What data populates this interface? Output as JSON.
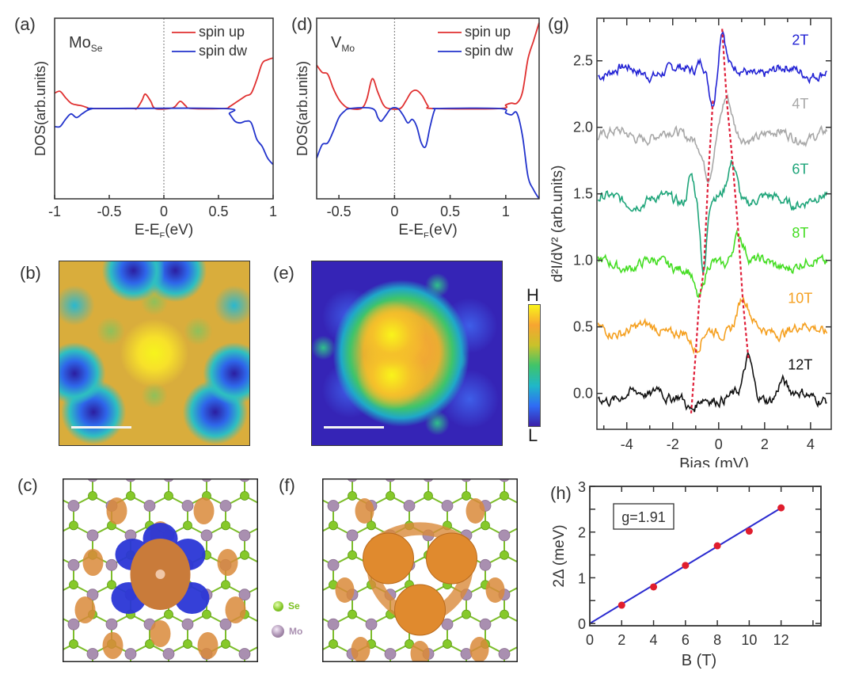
{
  "panels": {
    "a": {
      "label": "(a)"
    },
    "b": {
      "label": "(b)"
    },
    "c": {
      "label": "(c)"
    },
    "d": {
      "label": "(d)"
    },
    "e": {
      "label": "(e)"
    },
    "f": {
      "label": "(f)"
    },
    "g": {
      "label": "(g)"
    },
    "h": {
      "label": "(h)"
    }
  },
  "colorbar": {
    "high": "H",
    "low": "L",
    "colors": [
      "#3b1fa8",
      "#2f6cf5",
      "#1fb7c8",
      "#3fc46a",
      "#c9c22a",
      "#f7a531",
      "#f9f41a"
    ]
  },
  "atoms_legend": {
    "se": {
      "label": "Se",
      "color": "#86c92a"
    },
    "mo": {
      "label": "Mo",
      "color": "#a98fb0"
    }
  },
  "colors": {
    "spin_up": "#e03030",
    "spin_dw": "#2233cc",
    "isosurface": "#d98a3a",
    "isosurface_neg": "#2a36d6",
    "dashed": "#e0203a",
    "fit_line": "#2b2bd0",
    "points": "#e01d2d"
  },
  "chart_data": [
    {
      "id": "a",
      "type": "line",
      "title": "",
      "annotation": {
        "main": "Mo",
        "sub": "Se"
      },
      "xlabel": "E-E",
      "xlabel_sub": "F",
      "xlabel_tail": "(eV)",
      "ylabel": "DOS(arb.units)",
      "xlim": [
        -1,
        1
      ],
      "ylim": [
        -1,
        1
      ],
      "xticks": [
        -1,
        -0.5,
        0,
        0.5,
        1
      ],
      "xtick_labels": [
        "-1",
        "-0.5",
        "0",
        "0.5",
        "1"
      ],
      "vline": 0,
      "legend": {
        "position": "top-right",
        "entries": [
          "spin up",
          "spin dw"
        ]
      },
      "series": [
        {
          "name": "spin up",
          "color": "#e03030",
          "x": [
            -1,
            -0.95,
            -0.9,
            -0.85,
            -0.8,
            -0.75,
            -0.7,
            -0.65,
            -0.3,
            -0.25,
            -0.2,
            -0.17,
            -0.12,
            -0.08,
            0.05,
            0.1,
            0.15,
            0.2,
            0.25,
            0.55,
            0.6,
            0.65,
            0.7,
            0.75,
            0.8,
            0.85,
            0.9,
            0.95,
            1.0
          ],
          "y": [
            0.17,
            0.19,
            0.12,
            0.06,
            0.04,
            0.03,
            0.01,
            0.0,
            0.0,
            0.0,
            0.09,
            0.16,
            0.08,
            0.0,
            0.0,
            0.02,
            0.08,
            0.03,
            0.0,
            0.0,
            0.02,
            0.06,
            0.1,
            0.14,
            0.17,
            0.32,
            0.5,
            0.54,
            0.56
          ]
        },
        {
          "name": "spin dw",
          "color": "#2233cc",
          "x": [
            -1,
            -0.95,
            -0.9,
            -0.85,
            -0.8,
            -0.75,
            -0.7,
            -0.65,
            -0.6,
            0.55,
            0.6,
            0.65,
            0.7,
            0.75,
            0.8,
            0.85,
            0.9,
            0.95,
            1.0
          ],
          "y": [
            -0.2,
            -0.2,
            -0.12,
            -0.06,
            -0.1,
            -0.06,
            -0.02,
            0.0,
            0.0,
            0.0,
            -0.06,
            -0.14,
            -0.16,
            -0.14,
            -0.16,
            -0.34,
            -0.42,
            -0.55,
            -0.62
          ]
        }
      ]
    },
    {
      "id": "d",
      "type": "line",
      "title": "",
      "annotation": {
        "main": "V",
        "sub": "Mo"
      },
      "xlabel": "E-E",
      "xlabel_sub": "F",
      "xlabel_tail": "(eV)",
      "ylabel": "DOS(arb.units)",
      "xlim": [
        -0.7,
        1.3
      ],
      "ylim": [
        -1,
        1
      ],
      "xticks": [
        -0.5,
        0,
        0.5,
        1
      ],
      "xtick_labels": [
        "-0.5",
        "0",
        "0.5",
        "1"
      ],
      "vline": 0,
      "legend": {
        "position": "top-right",
        "entries": [
          "spin up",
          "spin dw"
        ]
      },
      "series": [
        {
          "name": "spin up",
          "color": "#e03030",
          "x": [
            -0.7,
            -0.65,
            -0.6,
            -0.55,
            -0.5,
            -0.45,
            -0.4,
            -0.3,
            -0.25,
            -0.2,
            -0.15,
            -0.1,
            -0.05,
            0.05,
            0.1,
            0.15,
            0.2,
            0.25,
            0.3,
            0.35,
            0.95,
            1.0,
            1.05,
            1.1,
            1.15,
            1.2,
            1.25,
            1.3
          ],
          "y": [
            0.48,
            0.4,
            0.38,
            0.22,
            0.1,
            0.03,
            0.0,
            0.0,
            0.1,
            0.33,
            0.18,
            0.04,
            0.0,
            0.0,
            0.08,
            0.18,
            0.2,
            0.14,
            0.03,
            0.0,
            0.0,
            0.04,
            0.06,
            0.06,
            0.18,
            0.55,
            0.75,
            0.95
          ]
        },
        {
          "name": "spin dw",
          "color": "#2233cc",
          "x": [
            -0.7,
            -0.65,
            -0.6,
            -0.55,
            -0.5,
            -0.45,
            -0.4,
            -0.2,
            -0.15,
            -0.12,
            -0.08,
            -0.03,
            0.03,
            0.08,
            0.12,
            0.16,
            0.2,
            0.24,
            0.28,
            0.32,
            0.36,
            0.4,
            0.95,
            1.0,
            1.05,
            1.1,
            1.15,
            1.2,
            1.25,
            1.3
          ],
          "y": [
            -0.55,
            -0.4,
            -0.38,
            -0.25,
            -0.1,
            -0.03,
            0.0,
            0.0,
            -0.1,
            -0.14,
            -0.08,
            0.0,
            0.0,
            -0.08,
            -0.16,
            -0.12,
            -0.2,
            -0.38,
            -0.42,
            -0.2,
            -0.02,
            0.0,
            0.0,
            -0.05,
            -0.07,
            -0.05,
            -0.3,
            -0.75,
            -0.9,
            -1.0
          ]
        }
      ]
    },
    {
      "id": "g",
      "type": "line",
      "title": "",
      "xlabel": "Bias (mV)",
      "ylabel": "d²I/dV² (arb.units)",
      "xlim": [
        -5.3,
        4.9
      ],
      "ylim": [
        -0.27,
        2.82
      ],
      "xticks": [
        -4,
        -2,
        0,
        2,
        4
      ],
      "xtick_labels": [
        "-4",
        "-2",
        "0",
        "2",
        "4"
      ],
      "yticks": [
        0.0,
        0.5,
        1.0,
        1.5,
        2.0,
        2.5
      ],
      "ytick_labels": [
        "0.0",
        "0.5",
        "1.0",
        "1.5",
        "2.0",
        "2.5"
      ],
      "series": [
        {
          "name": "2T",
          "color": "#2323d4",
          "offset": 2.42,
          "features": [
            {
              "x": -0.25,
              "y": -0.22,
              "w": 0.22
            },
            {
              "x": 0.15,
              "y": 0.32,
              "w": 0.2
            },
            {
              "x": -0.75,
              "y": 0.1,
              "w": 0.25
            }
          ]
        },
        {
          "name": "4T",
          "color": "#a8a8a8",
          "offset": 1.94,
          "features": [
            {
              "x": -0.45,
              "y": -0.3,
              "w": 0.3
            },
            {
              "x": 0.35,
              "y": 0.25,
              "w": 0.3
            }
          ]
        },
        {
          "name": "6T",
          "color": "#1fa57a",
          "offset": 1.45,
          "features": [
            {
              "x": -0.65,
              "y": -0.55,
              "w": 0.18
            },
            {
              "x": 0.6,
              "y": 0.3,
              "w": 0.3
            },
            {
              "x": -1.2,
              "y": 0.22,
              "w": 0.2
            }
          ]
        },
        {
          "name": "8T",
          "color": "#44dd22",
          "offset": 0.97,
          "features": [
            {
              "x": -0.85,
              "y": -0.28,
              "w": 0.3
            },
            {
              "x": 0.85,
              "y": 0.25,
              "w": 0.35
            }
          ]
        },
        {
          "name": "10T",
          "color": "#f5a020",
          "offset": 0.48,
          "features": [
            {
              "x": -1.0,
              "y": -0.18,
              "w": 0.35
            },
            {
              "x": 1.05,
              "y": 0.22,
              "w": 0.35
            }
          ]
        },
        {
          "name": "12T",
          "color": "#111111",
          "offset": -0.02,
          "features": [
            {
              "x": -1.2,
              "y": -0.14,
              "w": 0.35
            },
            {
              "x": 1.3,
              "y": 0.26,
              "w": 0.25
            },
            {
              "x": -2.6,
              "y": 0.1,
              "w": 0.25
            },
            {
              "x": 2.75,
              "y": 0.12,
              "w": 0.25
            }
          ]
        }
      ],
      "dashed_guides": [
        {
          "points": [
            [
              -0.25,
              2.2
            ],
            [
              -0.45,
              1.64
            ],
            [
              -0.65,
              0.92
            ],
            [
              -0.85,
              0.69
            ],
            [
              -1.0,
              0.3
            ],
            [
              -1.2,
              -0.15
            ]
          ]
        },
        {
          "points": [
            [
              0.15,
              2.74
            ],
            [
              0.35,
              2.2
            ],
            [
              0.6,
              1.75
            ],
            [
              0.85,
              1.22
            ],
            [
              1.05,
              0.7
            ],
            [
              1.3,
              0.25
            ]
          ]
        }
      ]
    },
    {
      "id": "h",
      "type": "scatter",
      "title": "",
      "xlabel": "B (T)",
      "ylabel": "2Δ (meV)",
      "xlim": [
        0,
        14.5
      ],
      "ylim": [
        -0.05,
        3.0
      ],
      "xticks": [
        0,
        2,
        4,
        6,
        8,
        10,
        12
      ],
      "xtick_labels": [
        "0",
        "2",
        "4",
        "6",
        "8",
        "10",
        "12"
      ],
      "yticks": [
        0,
        1,
        2,
        3
      ],
      "ytick_labels": [
        "0",
        "1",
        "2",
        "3"
      ],
      "annotation": "g=1.91",
      "x": [
        2,
        4,
        6,
        8,
        10,
        12
      ],
      "y": [
        0.4,
        0.8,
        1.27,
        1.7,
        2.02,
        2.53
      ],
      "fit": {
        "slope": 0.2107,
        "intercept": 0.0,
        "x_range": [
          0,
          12
        ]
      }
    }
  ]
}
